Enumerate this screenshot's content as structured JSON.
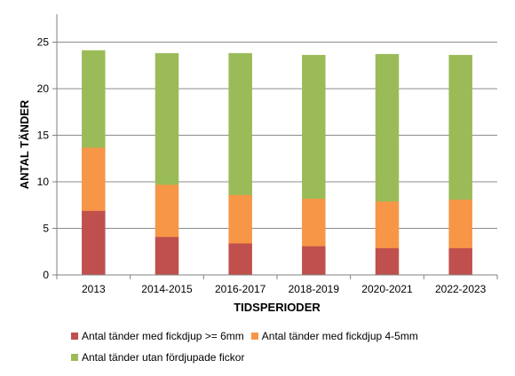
{
  "chart_data": {
    "type": "bar",
    "stacked": true,
    "categories": [
      "2013",
      "2014-2015",
      "2016-2017",
      "2018-2019",
      "2020-2021",
      "2022-2023"
    ],
    "series": [
      {
        "name": "Antal tänder med fickdjup >= 6mm",
        "color": "#c0504d",
        "values": [
          6.9,
          4.1,
          3.4,
          3.1,
          2.9,
          2.9
        ]
      },
      {
        "name": "Antal tänder med fickdjup 4-5mm",
        "color": "#f79646",
        "values": [
          6.8,
          5.6,
          5.2,
          5.1,
          5.0,
          5.2
        ]
      },
      {
        "name": "Antal tänder utan fördjupade fickor",
        "color": "#9bbb59",
        "values": [
          10.4,
          14.1,
          15.2,
          15.4,
          15.8,
          15.5
        ]
      }
    ],
    "xlabel": "TIDSPERIODER",
    "ylabel": "ANTAL TÄNDER",
    "ylim": [
      0,
      28
    ],
    "yticks": [
      0,
      5,
      10,
      15,
      20,
      25
    ],
    "grid": true,
    "legend_position": "bottom"
  }
}
